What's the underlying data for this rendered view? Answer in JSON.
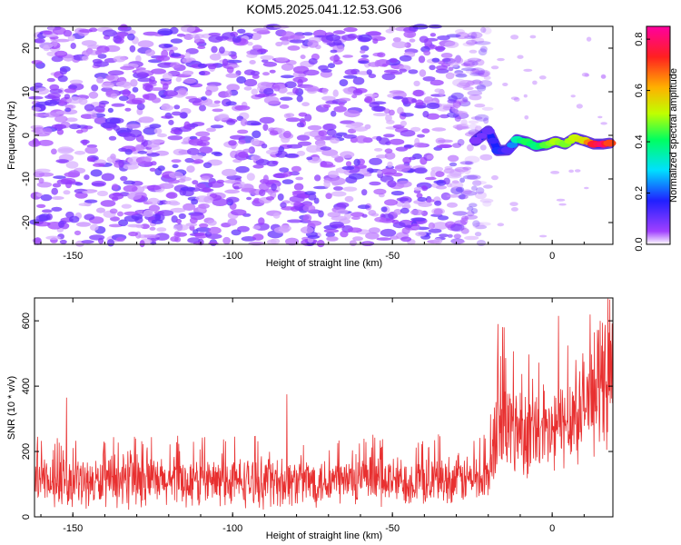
{
  "title": "KOM5.2025.041.12.53.G06",
  "chart_data": [
    {
      "type": "heatmap",
      "name": "spectrogram",
      "xlabel": "Height of straight line (km)",
      "ylabel": "Frequency (Hz)",
      "xlim": [
        -162,
        19
      ],
      "ylim": [
        -25,
        25
      ],
      "xticks": [
        -150,
        -100,
        -50,
        0
      ],
      "yticks": [
        -20,
        -10,
        0,
        10,
        20
      ],
      "noise_region": {
        "x_range": [
          -162,
          -20
        ],
        "y_range": [
          -25,
          25
        ],
        "amplitude_range": [
          0.02,
          0.12
        ]
      },
      "signal_track": [
        {
          "x": -24,
          "y": -1.2,
          "amplitude": 0.08
        },
        {
          "x": -20,
          "y": 1.0,
          "amplitude": 0.1
        },
        {
          "x": -17,
          "y": -3.5,
          "amplitude": 0.18
        },
        {
          "x": -14,
          "y": -3.4,
          "amplitude": 0.12
        },
        {
          "x": -11,
          "y": -1.0,
          "amplitude": 0.35
        },
        {
          "x": -8,
          "y": -1.5,
          "amplitude": 0.42
        },
        {
          "x": -5,
          "y": -2.5,
          "amplitude": 0.38
        },
        {
          "x": -2,
          "y": -2.2,
          "amplitude": 0.45
        },
        {
          "x": 1,
          "y": -1.4,
          "amplitude": 0.5
        },
        {
          "x": 4,
          "y": -2.0,
          "amplitude": 0.47
        },
        {
          "x": 7,
          "y": -0.6,
          "amplitude": 0.52
        },
        {
          "x": 10,
          "y": -1.2,
          "amplitude": 0.55
        },
        {
          "x": 13,
          "y": -2.0,
          "amplitude": 0.75
        },
        {
          "x": 16,
          "y": -2.0,
          "amplitude": 0.8
        },
        {
          "x": 18,
          "y": -1.8,
          "amplitude": 0.7
        }
      ]
    },
    {
      "type": "colorbar",
      "name": "amplitude-colorbar",
      "label": "Normalized spectral amplitude",
      "range": [
        0.0,
        0.85
      ],
      "ticks": [
        0.0,
        0.2,
        0.4,
        0.6,
        0.8
      ],
      "tick_labels": [
        "0.0",
        "0.2",
        "0.4",
        "0.6",
        "0.8"
      ],
      "colormap": "rainbow (white-violet-blue-cyan-green-yellow-red-magenta)"
    },
    {
      "type": "line",
      "name": "snr-plot",
      "xlabel": "Height of straight line (km)",
      "ylabel": "SNR (10 * v/v)",
      "xlim": [
        -162,
        19
      ],
      "ylim": [
        0,
        670
      ],
      "xticks": [
        -150,
        -100,
        -50,
        0
      ],
      "yticks": [
        0,
        200,
        400,
        600
      ],
      "color": "#e83030",
      "envelope": [
        {
          "x": -162,
          "mean": 105,
          "spread": 75
        },
        {
          "x": -120,
          "mean": 105,
          "spread": 80
        },
        {
          "x": -70,
          "mean": 110,
          "spread": 80
        },
        {
          "x": -40,
          "mean": 110,
          "spread": 80
        },
        {
          "x": -20,
          "mean": 120,
          "spread": 80
        },
        {
          "x": -17,
          "mean": 280,
          "spread": 180
        },
        {
          "x": -10,
          "mean": 270,
          "spread": 150
        },
        {
          "x": -2,
          "mean": 240,
          "spread": 140
        },
        {
          "x": 5,
          "mean": 300,
          "spread": 150
        },
        {
          "x": 12,
          "mean": 360,
          "spread": 170
        },
        {
          "x": 19,
          "mean": 430,
          "spread": 200
        }
      ],
      "peaks": [
        {
          "x": -161,
          "y": 245
        },
        {
          "x": -152,
          "y": 365
        },
        {
          "x": -83,
          "y": 375
        },
        {
          "x": -17,
          "y": 590
        },
        {
          "x": -15,
          "y": 580
        },
        {
          "x": 2,
          "y": 615
        },
        {
          "x": 15,
          "y": 600
        },
        {
          "x": 18,
          "y": 665
        }
      ]
    }
  ]
}
